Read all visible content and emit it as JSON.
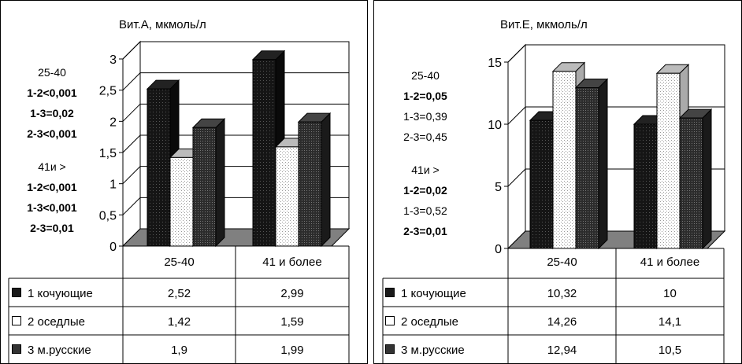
{
  "colors": {
    "nomadic": "#1a1a1a",
    "settled": "#ffffff",
    "russian": "#333333",
    "floor": "#808080"
  },
  "chart_data": [
    {
      "type": "bar",
      "title": "Вит.А, мкмоль/л",
      "categories": [
        "25-40",
        "41 и более"
      ],
      "ylim": [
        0,
        3
      ],
      "yticks": [
        "0",
        "0,5",
        "1",
        "1,5",
        "2",
        "2,5",
        "3"
      ],
      "ytick_values": [
        0,
        0.5,
        1,
        1.5,
        2,
        2.5,
        3
      ],
      "series": [
        {
          "name": "1 кочующие",
          "values": [
            2.52,
            2.99
          ],
          "labels": [
            "2,52",
            "2,99"
          ]
        },
        {
          "name": "2 оседлые",
          "values": [
            1.42,
            1.59
          ],
          "labels": [
            "1,42",
            "1,59"
          ]
        },
        {
          "name": "3 м.русские",
          "values": [
            1.9,
            1.99
          ],
          "labels": [
            "1,9",
            "1,99"
          ]
        }
      ],
      "annotations": [
        {
          "text": "25-40",
          "bold": false
        },
        {
          "text": "1-2<0,001",
          "bold": true
        },
        {
          "text": "1-3=0,02",
          "bold": true
        },
        {
          "text": "2-3<0,001",
          "bold": true
        },
        {
          "text": "41и >",
          "bold": false
        },
        {
          "text": "1-2<0,001",
          "bold": true
        },
        {
          "text": "1-3<0,001",
          "bold": true
        },
        {
          "text": "2-3=0,01",
          "bold": true
        }
      ]
    },
    {
      "type": "bar",
      "title": "Вит.Е, мкмоль/л",
      "categories": [
        "25-40",
        "41 и более"
      ],
      "ylim": [
        0,
        15
      ],
      "yticks": [
        "0",
        "5",
        "10",
        "15"
      ],
      "ytick_values": [
        0,
        5,
        10,
        15
      ],
      "series": [
        {
          "name": "1 кочующие",
          "values": [
            10.32,
            10
          ],
          "labels": [
            "10,32",
            "10"
          ]
        },
        {
          "name": "2 оседлые",
          "values": [
            14.26,
            14.1
          ],
          "labels": [
            "14,26",
            "14,1"
          ]
        },
        {
          "name": "3 м.русские",
          "values": [
            12.94,
            10.5
          ],
          "labels": [
            "12,94",
            "10,5"
          ]
        }
      ],
      "annotations": [
        {
          "text": "25-40",
          "bold": false
        },
        {
          "text": "1-2=0,05",
          "bold": true
        },
        {
          "text": "1-3=0,39",
          "bold": false
        },
        {
          "text": "2-3=0,45",
          "bold": false
        },
        {
          "text": "41и >",
          "bold": false
        },
        {
          "text": "1-2=0,02",
          "bold": true
        },
        {
          "text": "1-3=0,52",
          "bold": false
        },
        {
          "text": "2-3=0,01",
          "bold": true
        }
      ]
    }
  ]
}
